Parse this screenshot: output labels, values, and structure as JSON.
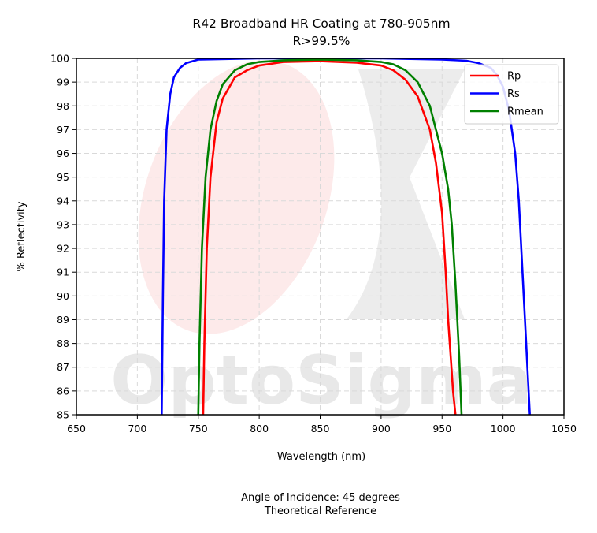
{
  "chart_data": {
    "type": "line",
    "title": "R42 Broadband HR Coating at 780-905nm",
    "subtitle": "R>99.5%",
    "xlabel": "Wavelength (nm)",
    "ylabel": "% Reflectivity",
    "xlim": [
      650,
      1050
    ],
    "ylim": [
      85,
      100
    ],
    "xticks": [
      650,
      700,
      750,
      800,
      850,
      900,
      950,
      1000,
      1050
    ],
    "yticks": [
      85,
      86,
      87,
      88,
      89,
      90,
      91,
      92,
      93,
      94,
      95,
      96,
      97,
      98,
      99,
      100
    ],
    "grid": true,
    "legend_position": "top-right",
    "footer": [
      "Angle of Incidence: 45 degrees",
      "Theoretical Reference"
    ],
    "watermark": "OptoSigma",
    "series": [
      {
        "name": "Rp",
        "color": "#ff0000",
        "x": [
          754,
          755,
          757,
          760,
          765,
          770,
          780,
          790,
          800,
          820,
          850,
          880,
          900,
          910,
          920,
          930,
          940,
          945,
          950,
          953,
          955,
          957,
          959,
          961
        ],
        "y": [
          85,
          88,
          92,
          95,
          97.3,
          98.3,
          99.2,
          99.5,
          99.7,
          99.85,
          99.88,
          99.82,
          99.7,
          99.5,
          99.1,
          98.4,
          97,
          95.6,
          93.5,
          91,
          89,
          87.5,
          86,
          85
        ]
      },
      {
        "name": "Rs",
        "color": "#0000ff",
        "x": [
          720,
          721,
          722,
          724,
          727,
          730,
          735,
          740,
          750,
          800,
          850,
          900,
          950,
          970,
          980,
          990,
          995,
          1000,
          1005,
          1010,
          1013,
          1016,
          1019,
          1022
        ],
        "y": [
          85,
          90,
          94,
          97,
          98.5,
          99.2,
          99.6,
          99.8,
          99.95,
          100,
          100,
          100,
          99.95,
          99.9,
          99.8,
          99.6,
          99.3,
          98.8,
          97.8,
          96,
          94,
          91,
          88,
          85
        ]
      },
      {
        "name": "Rmean",
        "color": "#008000",
        "x": [
          750,
          751,
          753,
          756,
          760,
          765,
          770,
          780,
          790,
          800,
          820,
          850,
          880,
          900,
          910,
          920,
          930,
          940,
          950,
          955,
          958,
          961,
          964,
          966
        ],
        "y": [
          85,
          88,
          92,
          95,
          97,
          98.2,
          98.9,
          99.5,
          99.75,
          99.85,
          99.92,
          99.95,
          99.92,
          99.85,
          99.75,
          99.5,
          99,
          98,
          96,
          94.5,
          93,
          90.5,
          87.5,
          85
        ]
      }
    ]
  }
}
